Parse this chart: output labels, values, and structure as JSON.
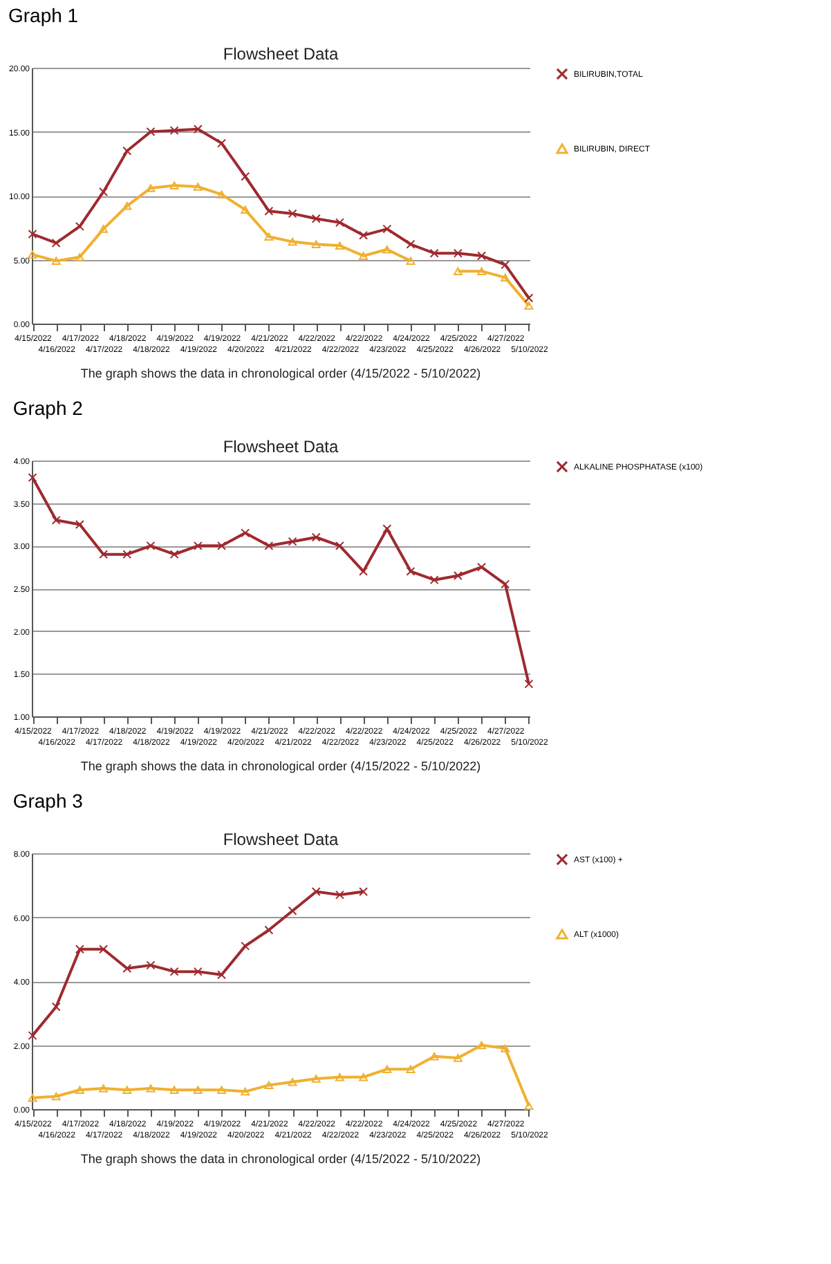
{
  "chart_data": [
    {
      "type": "line",
      "title": "Graph 1",
      "subtitle": "Flowsheet Data",
      "annotations": [
        "The graph shows the data in chronological order (4/15/2022 - 5/10/2022)"
      ],
      "categories": [
        "4/15/2022",
        "4/16/2022",
        "4/17/2022",
        "4/17/2022",
        "4/18/2022",
        "4/18/2022",
        "4/19/2022",
        "4/19/2022",
        "4/19/2022",
        "4/20/2022",
        "4/21/2022",
        "4/21/2022",
        "4/22/2022",
        "4/22/2022",
        "4/22/2022",
        "4/23/2022",
        "4/24/2022",
        "4/25/2022",
        "4/25/2022",
        "4/26/2022",
        "4/27/2022",
        "5/10/2022"
      ],
      "series": [
        {
          "name": "BILIRUBIN,TOTAL",
          "color": "#9e2a2f",
          "marker": "cross",
          "values": [
            7.0,
            6.3,
            7.6,
            10.3,
            13.5,
            15.0,
            15.1,
            15.2,
            14.1,
            11.5,
            8.8,
            8.6,
            8.2,
            7.9,
            6.9,
            7.4,
            6.2,
            5.5,
            5.5,
            5.3,
            4.6,
            2.0
          ]
        },
        {
          "name": "BILIRUBIN, DIRECT",
          "color": "#f0b030",
          "marker": "triangle",
          "values": [
            5.4,
            4.9,
            5.2,
            7.4,
            9.2,
            10.6,
            10.8,
            10.7,
            10.1,
            8.9,
            6.8,
            6.4,
            6.2,
            6.1,
            5.3,
            5.8,
            4.9,
            null,
            4.1,
            4.1,
            3.6,
            1.4
          ]
        }
      ],
      "ylim": [
        0,
        20
      ],
      "yticks": [
        {
          "value": 0,
          "label": "0.00"
        },
        {
          "value": 5,
          "label": "5.00"
        },
        {
          "value": 10,
          "label": "10.00"
        },
        {
          "value": 15,
          "label": "15.00"
        },
        {
          "value": 20,
          "label": "20.00"
        }
      ],
      "grid": "y",
      "legend": "right"
    },
    {
      "type": "line",
      "title": "Graph 2",
      "subtitle": "Flowsheet Data",
      "annotations": [
        "The graph shows the data in chronological order (4/15/2022 - 5/10/2022)"
      ],
      "categories": [
        "4/15/2022",
        "4/16/2022",
        "4/17/2022",
        "4/17/2022",
        "4/18/2022",
        "4/18/2022",
        "4/19/2022",
        "4/19/2022",
        "4/19/2022",
        "4/20/2022",
        "4/21/2022",
        "4/21/2022",
        "4/22/2022",
        "4/22/2022",
        "4/22/2022",
        "4/23/2022",
        "4/24/2022",
        "4/25/2022",
        "4/25/2022",
        "4/26/2022",
        "4/27/2022",
        "5/10/2022"
      ],
      "series": [
        {
          "name": "ALKALINE PHOSPHATASE (x100)",
          "color": "#9e2a2f",
          "marker": "cross",
          "values": [
            3.8,
            3.3,
            3.25,
            2.9,
            2.9,
            3.0,
            2.9,
            3.0,
            3.0,
            3.15,
            3.0,
            3.05,
            3.1,
            3.0,
            2.7,
            3.2,
            2.7,
            2.6,
            2.65,
            2.75,
            2.55,
            1.38
          ]
        }
      ],
      "ylim": [
        1,
        4
      ],
      "yticks": [
        {
          "value": 1,
          "label": "1.00"
        },
        {
          "value": 1.5,
          "label": "1.50"
        },
        {
          "value": 2,
          "label": "2.00"
        },
        {
          "value": 2.5,
          "label": "2.50"
        },
        {
          "value": 3,
          "label": "3.00"
        },
        {
          "value": 3.5,
          "label": "3.50"
        },
        {
          "value": 4,
          "label": "4.00"
        }
      ],
      "grid": "y",
      "legend": "right"
    },
    {
      "type": "line",
      "title": "Graph 3",
      "subtitle": "Flowsheet Data",
      "annotations": [
        "The graph shows the data in chronological order (4/15/2022 - 5/10/2022)"
      ],
      "categories": [
        "4/15/2022",
        "4/16/2022",
        "4/17/2022",
        "4/17/2022",
        "4/18/2022",
        "4/18/2022",
        "4/19/2022",
        "4/19/2022",
        "4/19/2022",
        "4/20/2022",
        "4/21/2022",
        "4/21/2022",
        "4/22/2022",
        "4/22/2022",
        "4/22/2022",
        "4/23/2022",
        "4/24/2022",
        "4/25/2022",
        "4/25/2022",
        "4/26/2022",
        "4/27/2022",
        "5/10/2022"
      ],
      "series": [
        {
          "name": "AST (x100) +",
          "color": "#9e2a2f",
          "marker": "cross",
          "values": [
            2.3,
            3.2,
            5.0,
            5.0,
            4.4,
            4.5,
            4.3,
            4.3,
            4.2,
            5.1,
            5.6,
            6.2,
            6.8,
            6.7,
            6.8,
            null,
            null,
            null,
            null,
            null,
            null,
            null
          ]
        },
        {
          "name": "ALT (x1000)",
          "color": "#f0b030",
          "marker": "triangle",
          "values": [
            0.35,
            0.4,
            0.6,
            0.65,
            0.6,
            0.65,
            0.6,
            0.6,
            0.6,
            0.55,
            0.75,
            0.85,
            0.95,
            1.0,
            1.0,
            1.25,
            1.25,
            1.65,
            1.6,
            2.0,
            1.9,
            0.1
          ]
        }
      ],
      "ylim": [
        0,
        8
      ],
      "yticks": [
        {
          "value": 0,
          "label": "0.00"
        },
        {
          "value": 2,
          "label": "2.00"
        },
        {
          "value": 4,
          "label": "4.00"
        },
        {
          "value": 6,
          "label": "6.00"
        },
        {
          "value": 8,
          "label": "8.00"
        }
      ],
      "grid": "y",
      "legend": "right"
    }
  ]
}
